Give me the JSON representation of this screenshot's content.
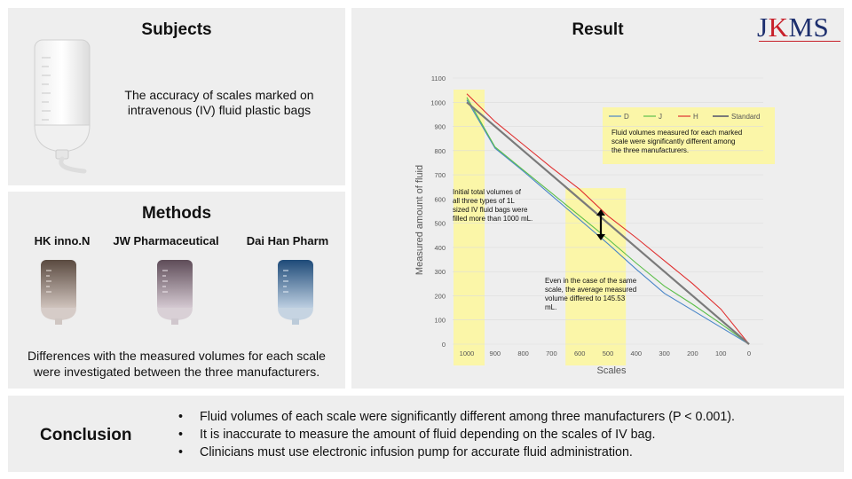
{
  "subjects": {
    "title": "Subjects",
    "description": "The accuracy of scales marked on intravenous (IV) fluid plastic bags"
  },
  "methods": {
    "title": "Methods",
    "manufacturers": [
      "HK inno.N",
      "JW Pharmaceutical",
      "Dai Han Pharm"
    ],
    "description": "Differences with the measured volumes for each scale were investigated between the three manufacturers."
  },
  "result": {
    "title": "Result",
    "logo": "JKMS",
    "note_legend": "Fluid volumes measured for each marked scale were significantly different among the three manufacturers.",
    "note_initial": "Initial total volumes of all three types of 1L sized IV fluid bags were filled more than 1000 mL.",
    "note_same_scale": "Even in the case of the same scale, the average measured volume differed to 145.53 mL."
  },
  "chart_data": {
    "type": "line",
    "title": "",
    "xlabel": "Scales",
    "ylabel": "Measured amount of fluid",
    "categories": [
      "1000",
      "900",
      "800",
      "700",
      "600",
      "500",
      "400",
      "300",
      "200",
      "100",
      "0"
    ],
    "ylim": [
      0,
      1100
    ],
    "yticks": [
      "0",
      "100",
      "200",
      "300",
      "400",
      "500",
      "600",
      "700",
      "800",
      "900",
      "1000",
      "1100"
    ],
    "grid": true,
    "legend_position": "top-right",
    "series": [
      {
        "name": "D",
        "color": "#4a86c8",
        "values": [
          1010,
          810,
          715,
          615,
          515,
          415,
          310,
          210,
          140,
          70,
          0
        ]
      },
      {
        "name": "J",
        "color": "#5cbf4a",
        "values": [
          1020,
          815,
          720,
          625,
          530,
          435,
          335,
          240,
          165,
          85,
          0
        ]
      },
      {
        "name": "H",
        "color": "#e03030",
        "values": [
          1035,
          920,
          825,
          730,
          640,
          530,
          440,
          345,
          250,
          145,
          0
        ]
      },
      {
        "name": "Standard",
        "color": "#7a7a7a",
        "values": [
          1000,
          900,
          800,
          700,
          600,
          500,
          400,
          300,
          200,
          100,
          0
        ]
      }
    ]
  },
  "conclusion": {
    "title": "Conclusion",
    "points": [
      "Fluid volumes of each scale were significantly different among three manufacturers (P < 0.001).",
      "It is inaccurate to measure the amount of fluid depending on the scales of IV bag.",
      "Clinicians must use electronic infusion pump for accurate fluid administration."
    ]
  }
}
